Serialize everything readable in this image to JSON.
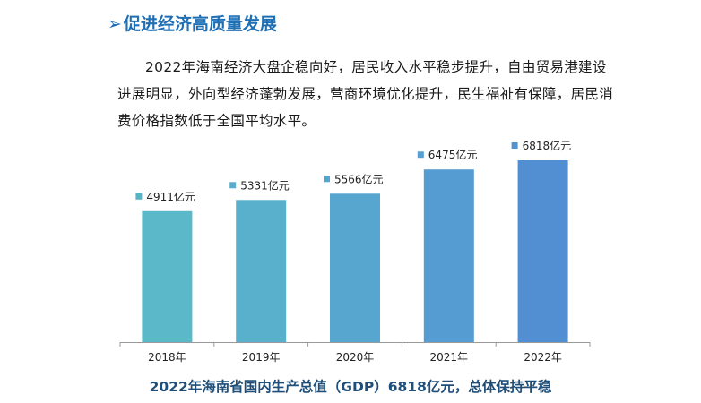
{
  "section": {
    "arrow": "➢",
    "title": "促进经济高质量发展"
  },
  "paragraph": "2022年海南经济大盘企稳向好，居民收入水平稳步提升，自由贸易港建设进展明显，外向型经济蓬勃发展，营商环境优化提升，民生福祉有保障，居民消费价格指数低于全国平均水平。",
  "caption": "2022年海南省国内生产总值（GDP）6818亿元，总体保持平稳",
  "chart_data": {
    "type": "bar",
    "categories": [
      "2018年",
      "2019年",
      "2020年",
      "2021年",
      "2022年"
    ],
    "values": [
      4911,
      5331,
      5566,
      6475,
      6818
    ],
    "value_labels": [
      "4911亿元",
      "5331亿元",
      "5566亿元",
      "6475亿元",
      "6818亿元"
    ],
    "colors": [
      "#5ab8c8",
      "#58b0cc",
      "#56a6cf",
      "#549cd2",
      "#528fd2"
    ],
    "marker_colors": [
      "#56b4c6",
      "#56aecc",
      "#55a6cf",
      "#579fd2",
      "#5192d0"
    ],
    "axis_color": "#9a9a9a"
  }
}
